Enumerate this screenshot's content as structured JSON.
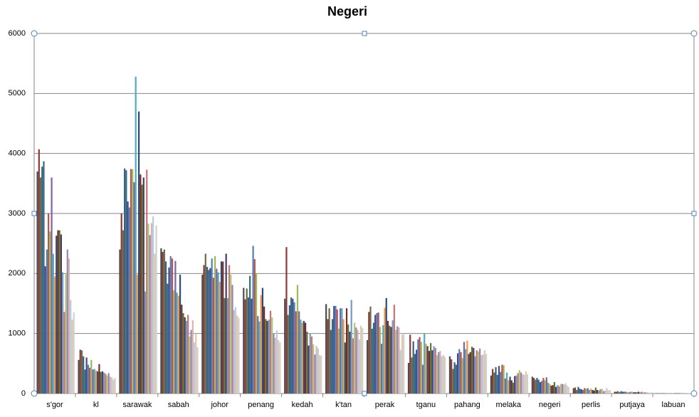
{
  "chart_data": {
    "type": "bar",
    "title": "Negeri",
    "categories": [
      "s'gor",
      "kl",
      "sarawak",
      "sabah",
      "johor",
      "penang",
      "kedah",
      "k'tan",
      "perak",
      "tganu",
      "pahang",
      "melaka",
      "negeri",
      "perlis",
      "putjaya",
      "labuan"
    ],
    "ylim": [
      0,
      6000
    ],
    "yticks": [
      0,
      1000,
      2000,
      3000,
      4000,
      5000,
      6000
    ],
    "grid": true,
    "series": [
      {
        "color": "#4d4d4d",
        "values": [
          3700,
          560,
          2400,
          2420,
          1980,
          1760,
          1580,
          1490,
          890,
          510,
          620,
          300,
          280,
          90,
          30,
          5
        ]
      },
      {
        "color": "#8b3a3a",
        "values": [
          4070,
          730,
          3000,
          2360,
          2140,
          1570,
          2440,
          1240,
          1360,
          980,
          570,
          410,
          260,
          100,
          30,
          5
        ]
      },
      {
        "color": "#6b6b4a",
        "values": [
          3600,
          720,
          2720,
          2400,
          2330,
          1750,
          1310,
          1420,
          1450,
          600,
          410,
          350,
          230,
          60,
          40,
          5
        ]
      },
      {
        "color": "#3f5f7f",
        "values": [
          3780,
          620,
          3750,
          2200,
          2110,
          1600,
          1470,
          1060,
          1080,
          870,
          520,
          440,
          260,
          110,
          20,
          5
        ]
      },
      {
        "color": "#2f6f7f",
        "values": [
          3870,
          400,
          3720,
          1830,
          2060,
          1960,
          1600,
          1240,
          1180,
          660,
          480,
          310,
          230,
          80,
          40,
          5
        ]
      },
      {
        "color": "#4a4a8a",
        "values": [
          2120,
          600,
          3200,
          2100,
          2090,
          1580,
          1580,
          1460,
          1310,
          730,
          670,
          460,
          190,
          70,
          30,
          5
        ]
      },
      {
        "color": "#4f81bd",
        "values": [
          2400,
          480,
          3100,
          2290,
          2250,
          2460,
          1520,
          1460,
          1340,
          900,
          740,
          360,
          210,
          60,
          30,
          5
        ]
      },
      {
        "color": "#c0504d",
        "values": [
          3000,
          430,
          3740,
          2250,
          1930,
          2240,
          1370,
          1400,
          1350,
          940,
          690,
          480,
          260,
          90,
          30,
          5
        ]
      },
      {
        "color": "#9bbb59",
        "values": [
          2700,
          560,
          3740,
          1720,
          2290,
          2000,
          1810,
          1080,
          1110,
          860,
          590,
          470,
          220,
          80,
          20,
          5
        ]
      },
      {
        "color": "#8064a2",
        "values": [
          3600,
          400,
          3520,
          2210,
          2080,
          1290,
          1370,
          1420,
          830,
          480,
          860,
          250,
          270,
          90,
          20,
          5
        ]
      },
      {
        "color": "#4bacc6",
        "values": [
          2330,
          410,
          5280,
          1680,
          2020,
          1200,
          1230,
          1420,
          1140,
          1000,
          740,
          350,
          180,
          60,
          30,
          5
        ]
      },
      {
        "color": "#f79646",
        "values": [
          1950,
          380,
          1980,
          1630,
          1860,
          1640,
          1180,
          1240,
          1430,
          830,
          880,
          220,
          160,
          80,
          30,
          5
        ]
      },
      {
        "color": "#2c4d75",
        "values": [
          2630,
          370,
          4700,
          1980,
          2200,
          1760,
          1210,
          850,
          1590,
          790,
          660,
          280,
          130,
          60,
          20,
          5
        ]
      },
      {
        "color": "#772c2a",
        "values": [
          2720,
          490,
          3650,
          1480,
          2200,
          1450,
          1180,
          1420,
          1210,
          710,
          690,
          220,
          140,
          50,
          20,
          5
        ]
      },
      {
        "color": "#5f7530",
        "values": [
          2720,
          360,
          3480,
          1340,
          1590,
          1240,
          1030,
          1150,
          1130,
          840,
          780,
          180,
          190,
          100,
          20,
          5
        ]
      },
      {
        "color": "#4d3b62",
        "values": [
          2650,
          370,
          3600,
          1270,
          2330,
          1210,
          800,
          1030,
          1110,
          720,
          760,
          290,
          110,
          60,
          30,
          5
        ]
      },
      {
        "color": "#729aca",
        "values": [
          2020,
          350,
          1700,
          1210,
          1590,
          1230,
          1000,
          1560,
          1220,
          790,
          620,
          300,
          140,
          50,
          20,
          5
        ]
      },
      {
        "color": "#cd7371",
        "values": [
          1360,
          330,
          3730,
          1310,
          2140,
          1380,
          950,
          920,
          1480,
          760,
          720,
          340,
          120,
          70,
          30,
          5
        ]
      },
      {
        "color": "#afc97a",
        "values": [
          2010,
          300,
          2830,
          950,
          1980,
          1270,
          820,
          1180,
          1060,
          640,
          700,
          390,
          160,
          80,
          20,
          5
        ]
      },
      {
        "color": "#9983b5",
        "values": [
          2400,
          340,
          2640,
          1060,
          1810,
          1000,
          650,
          1100,
          1120,
          690,
          750,
          350,
          160,
          40,
          20,
          5
        ]
      },
      {
        "color": "#d9b3b3",
        "values": [
          2250,
          280,
          2840,
          1220,
          1390,
          930,
          790,
          1060,
          1100,
          710,
          640,
          320,
          150,
          50,
          20,
          5
        ]
      },
      {
        "color": "#b7cde3",
        "values": [
          1560,
          270,
          2950,
          850,
          1440,
          1050,
          750,
          900,
          730,
          620,
          650,
          310,
          170,
          90,
          20,
          5
        ]
      },
      {
        "color": "#e0c8a8",
        "values": [
          1230,
          230,
          2330,
          990,
          1300,
          890,
          640,
          1130,
          980,
          640,
          720,
          370,
          130,
          50,
          10,
          5
        ]
      },
      {
        "color": "#d0d0d0",
        "values": [
          1350,
          260,
          2800,
          770,
          1260,
          850,
          630,
          1090,
          1000,
          610,
          660,
          320,
          110,
          60,
          20,
          5
        ]
      }
    ]
  }
}
